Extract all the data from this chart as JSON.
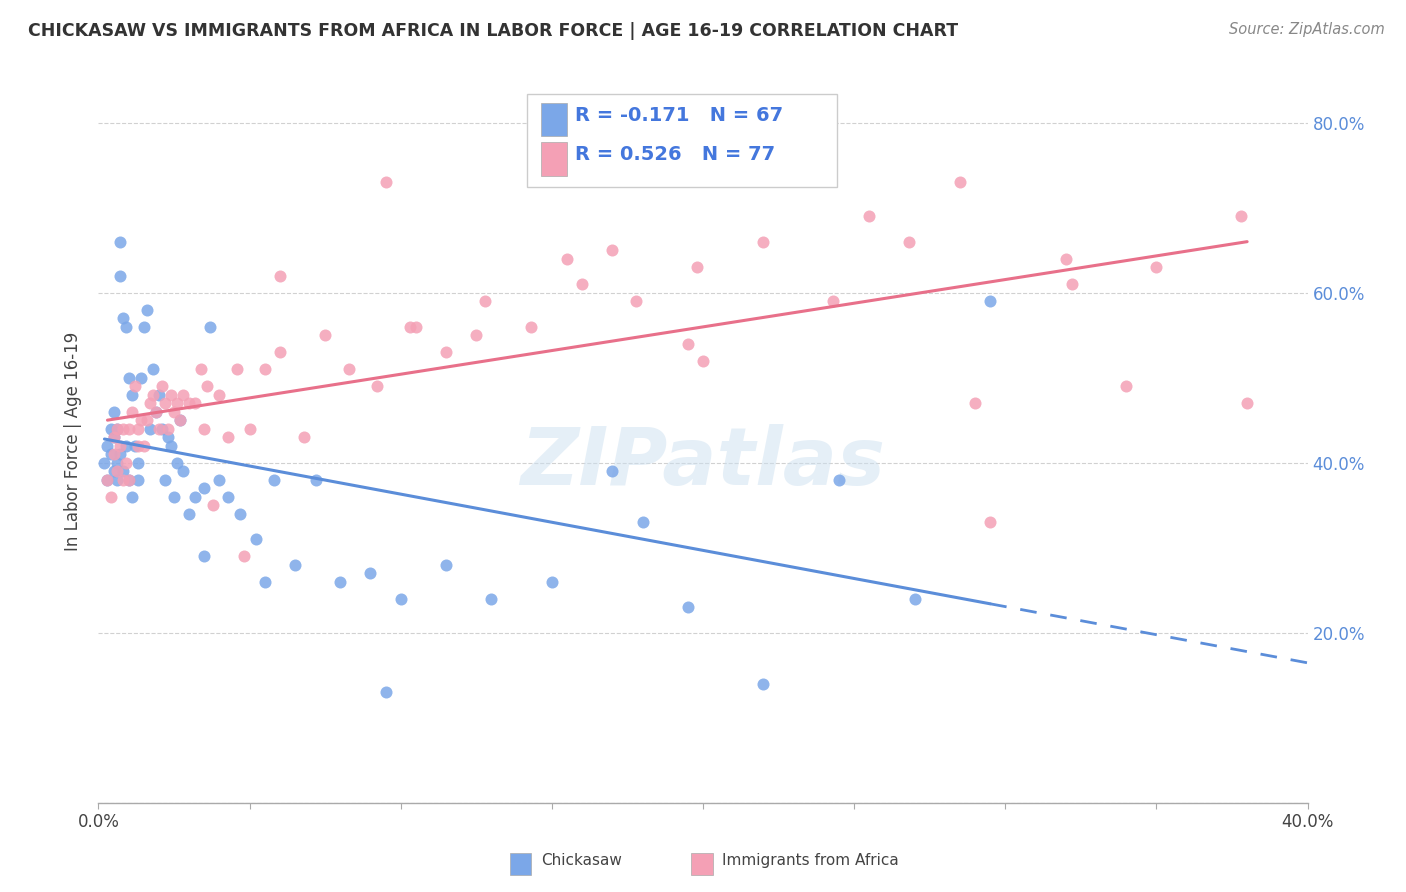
{
  "title": "CHICKASAW VS IMMIGRANTS FROM AFRICA IN LABOR FORCE | AGE 16-19 CORRELATION CHART",
  "source": "Source: ZipAtlas.com",
  "ylabel": "In Labor Force | Age 16-19",
  "xlim": [
    0.0,
    0.4
  ],
  "ylim": [
    0.0,
    0.85
  ],
  "x_tick_positions": [
    0.0,
    0.05,
    0.1,
    0.15,
    0.2,
    0.25,
    0.3,
    0.35,
    0.4
  ],
  "x_tick_labels": [
    "0.0%",
    "",
    "",
    "",
    "",
    "",
    "",
    "",
    "40.0%"
  ],
  "y_tick_positions": [
    0.0,
    0.2,
    0.4,
    0.6,
    0.8
  ],
  "y_tick_labels_right": [
    "",
    "20.0%",
    "40.0%",
    "60.0%",
    "80.0%"
  ],
  "legend1_R": "-0.171",
  "legend1_N": "67",
  "legend2_R": "0.526",
  "legend2_N": "77",
  "chickasaw_color": "#7BA7E8",
  "africa_color": "#F4A0B5",
  "trendline1_color": "#5B8DD9",
  "trendline2_color": "#E8708A",
  "watermark": "ZIPatlas",
  "chickasaw_x": [
    0.002,
    0.003,
    0.003,
    0.004,
    0.004,
    0.005,
    0.005,
    0.005,
    0.006,
    0.006,
    0.006,
    0.007,
    0.007,
    0.007,
    0.008,
    0.008,
    0.009,
    0.009,
    0.01,
    0.01,
    0.011,
    0.011,
    0.012,
    0.013,
    0.013,
    0.014,
    0.015,
    0.016,
    0.017,
    0.018,
    0.019,
    0.02,
    0.021,
    0.022,
    0.023,
    0.024,
    0.025,
    0.026,
    0.027,
    0.028,
    0.03,
    0.032,
    0.035,
    0.037,
    0.04,
    0.043,
    0.047,
    0.052,
    0.058,
    0.065,
    0.072,
    0.08,
    0.09,
    0.1,
    0.115,
    0.13,
    0.15,
    0.17,
    0.195,
    0.22,
    0.245,
    0.27,
    0.295,
    0.18,
    0.095,
    0.055,
    0.035
  ],
  "chickasaw_y": [
    0.4,
    0.38,
    0.42,
    0.41,
    0.44,
    0.43,
    0.39,
    0.46,
    0.4,
    0.38,
    0.44,
    0.66,
    0.62,
    0.41,
    0.39,
    0.57,
    0.56,
    0.42,
    0.5,
    0.38,
    0.48,
    0.36,
    0.42,
    0.4,
    0.38,
    0.5,
    0.56,
    0.58,
    0.44,
    0.51,
    0.46,
    0.48,
    0.44,
    0.38,
    0.43,
    0.42,
    0.36,
    0.4,
    0.45,
    0.39,
    0.34,
    0.36,
    0.37,
    0.56,
    0.38,
    0.36,
    0.34,
    0.31,
    0.38,
    0.28,
    0.38,
    0.26,
    0.27,
    0.24,
    0.28,
    0.24,
    0.26,
    0.39,
    0.23,
    0.14,
    0.38,
    0.24,
    0.59,
    0.33,
    0.13,
    0.26,
    0.29
  ],
  "africa_x": [
    0.003,
    0.004,
    0.005,
    0.005,
    0.006,
    0.006,
    0.007,
    0.008,
    0.008,
    0.009,
    0.01,
    0.01,
    0.011,
    0.012,
    0.013,
    0.013,
    0.014,
    0.015,
    0.016,
    0.017,
    0.018,
    0.019,
    0.02,
    0.021,
    0.022,
    0.023,
    0.024,
    0.025,
    0.026,
    0.027,
    0.028,
    0.03,
    0.032,
    0.034,
    0.036,
    0.038,
    0.04,
    0.043,
    0.046,
    0.05,
    0.055,
    0.06,
    0.068,
    0.075,
    0.083,
    0.092,
    0.103,
    0.115,
    0.128,
    0.143,
    0.16,
    0.178,
    0.198,
    0.22,
    0.243,
    0.268,
    0.295,
    0.322,
    0.35,
    0.378,
    0.155,
    0.2,
    0.29,
    0.105,
    0.048,
    0.195,
    0.32,
    0.38,
    0.255,
    0.34,
    0.22,
    0.125,
    0.095,
    0.06,
    0.035,
    0.17,
    0.285
  ],
  "africa_y": [
    0.38,
    0.36,
    0.41,
    0.43,
    0.39,
    0.44,
    0.42,
    0.38,
    0.44,
    0.4,
    0.38,
    0.44,
    0.46,
    0.49,
    0.44,
    0.42,
    0.45,
    0.42,
    0.45,
    0.47,
    0.48,
    0.46,
    0.44,
    0.49,
    0.47,
    0.44,
    0.48,
    0.46,
    0.47,
    0.45,
    0.48,
    0.47,
    0.47,
    0.51,
    0.49,
    0.35,
    0.48,
    0.43,
    0.51,
    0.44,
    0.51,
    0.53,
    0.43,
    0.55,
    0.51,
    0.49,
    0.56,
    0.53,
    0.59,
    0.56,
    0.61,
    0.59,
    0.63,
    0.66,
    0.59,
    0.66,
    0.33,
    0.61,
    0.63,
    0.69,
    0.64,
    0.52,
    0.47,
    0.56,
    0.29,
    0.54,
    0.64,
    0.47,
    0.69,
    0.49,
    0.74,
    0.55,
    0.73,
    0.62,
    0.44,
    0.65,
    0.73
  ]
}
